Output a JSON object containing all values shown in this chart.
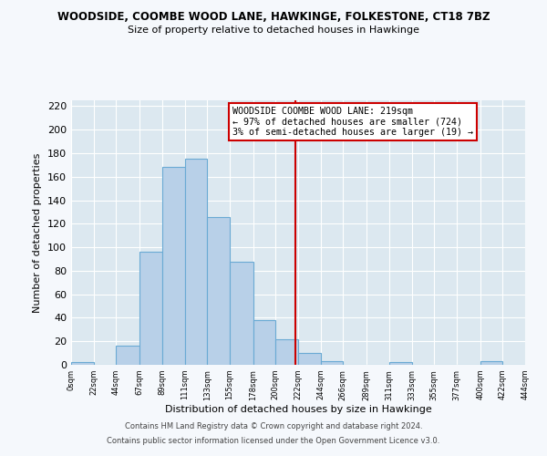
{
  "title": "WOODSIDE, COOMBE WOOD LANE, HAWKINGE, FOLKESTONE, CT18 7BZ",
  "subtitle": "Size of property relative to detached houses in Hawkinge",
  "xlabel": "Distribution of detached houses by size in Hawkinge",
  "ylabel": "Number of detached properties",
  "bar_color": "#b8d0e8",
  "bar_edge_color": "#6aaad4",
  "background_color": "#dce8f0",
  "grid_color": "#ffffff",
  "fig_background": "#f5f8fc",
  "vline_value": 219,
  "vline_color": "#cc0000",
  "bin_edges": [
    0,
    22,
    44,
    67,
    89,
    111,
    133,
    155,
    178,
    200,
    222,
    244,
    266,
    289,
    311,
    333,
    355,
    377,
    400,
    422,
    444
  ],
  "bin_labels": [
    "0sqm",
    "22sqm",
    "44sqm",
    "67sqm",
    "89sqm",
    "111sqm",
    "133sqm",
    "155sqm",
    "178sqm",
    "200sqm",
    "222sqm",
    "244sqm",
    "266sqm",
    "289sqm",
    "311sqm",
    "333sqm",
    "355sqm",
    "377sqm",
    "400sqm",
    "422sqm",
    "444sqm"
  ],
  "counts": [
    2,
    0,
    16,
    96,
    168,
    175,
    126,
    88,
    38,
    22,
    10,
    3,
    0,
    0,
    2,
    0,
    0,
    0,
    3,
    0
  ],
  "ylim": [
    0,
    225
  ],
  "yticks": [
    0,
    20,
    40,
    60,
    80,
    100,
    120,
    140,
    160,
    180,
    200,
    220
  ],
  "annotation_title": "WOODSIDE COOMBE WOOD LANE: 219sqm",
  "annotation_line1": "← 97% of detached houses are smaller (724)",
  "annotation_line2": "3% of semi-detached houses are larger (19) →",
  "annotation_box_color": "#ffffff",
  "annotation_edge_color": "#cc0000",
  "footer_line1": "Contains HM Land Registry data © Crown copyright and database right 2024.",
  "footer_line2": "Contains public sector information licensed under the Open Government Licence v3.0."
}
